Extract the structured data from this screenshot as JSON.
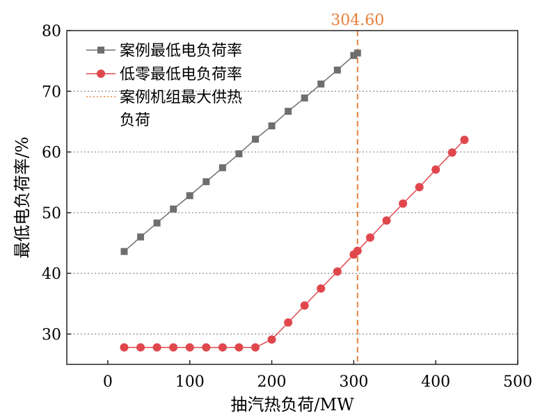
{
  "chart_data": {
    "type": "line",
    "title": "",
    "xlabel": "抽汽热负荷/MW",
    "ylabel": "最低电负荷率/%",
    "xlim": [
      -50,
      500
    ],
    "ylim": [
      25,
      80
    ],
    "xticks": [
      0,
      100,
      200,
      300,
      400,
      500
    ],
    "yticks": [
      30,
      40,
      50,
      60,
      70,
      80
    ],
    "grid": "horizontal dotted",
    "legend_position": "top-left",
    "series": [
      {
        "name": "案例最低电负荷率",
        "color": "#6e6e6e",
        "marker": "square",
        "x": [
          20,
          40,
          60,
          80,
          100,
          120,
          140,
          160,
          180,
          200,
          220,
          240,
          260,
          280,
          300,
          304.6
        ],
        "y": [
          43.6,
          46.0,
          48.3,
          50.6,
          52.8,
          55.1,
          57.4,
          59.7,
          62.1,
          64.3,
          66.7,
          68.9,
          71.2,
          73.5,
          75.9,
          76.3
        ]
      },
      {
        "name": "低零最低电负荷率",
        "color": "#e0474c",
        "marker": "circle",
        "x": [
          20,
          40,
          60,
          80,
          100,
          120,
          140,
          160,
          180,
          200,
          220,
          240,
          260,
          280,
          300,
          304.6,
          320,
          340,
          360,
          380,
          400,
          420,
          435
        ],
        "y": [
          27.8,
          27.8,
          27.8,
          27.8,
          27.8,
          27.8,
          27.8,
          27.8,
          27.8,
          29.1,
          31.9,
          34.7,
          37.5,
          40.3,
          43.1,
          43.7,
          45.9,
          48.7,
          51.5,
          54.2,
          57.1,
          59.9,
          62.0
        ]
      }
    ],
    "vline": {
      "x": 304.6,
      "label": "304.60",
      "color": "#e8813a",
      "legend": [
        "案例机组最大供热",
        "负荷"
      ]
    }
  }
}
